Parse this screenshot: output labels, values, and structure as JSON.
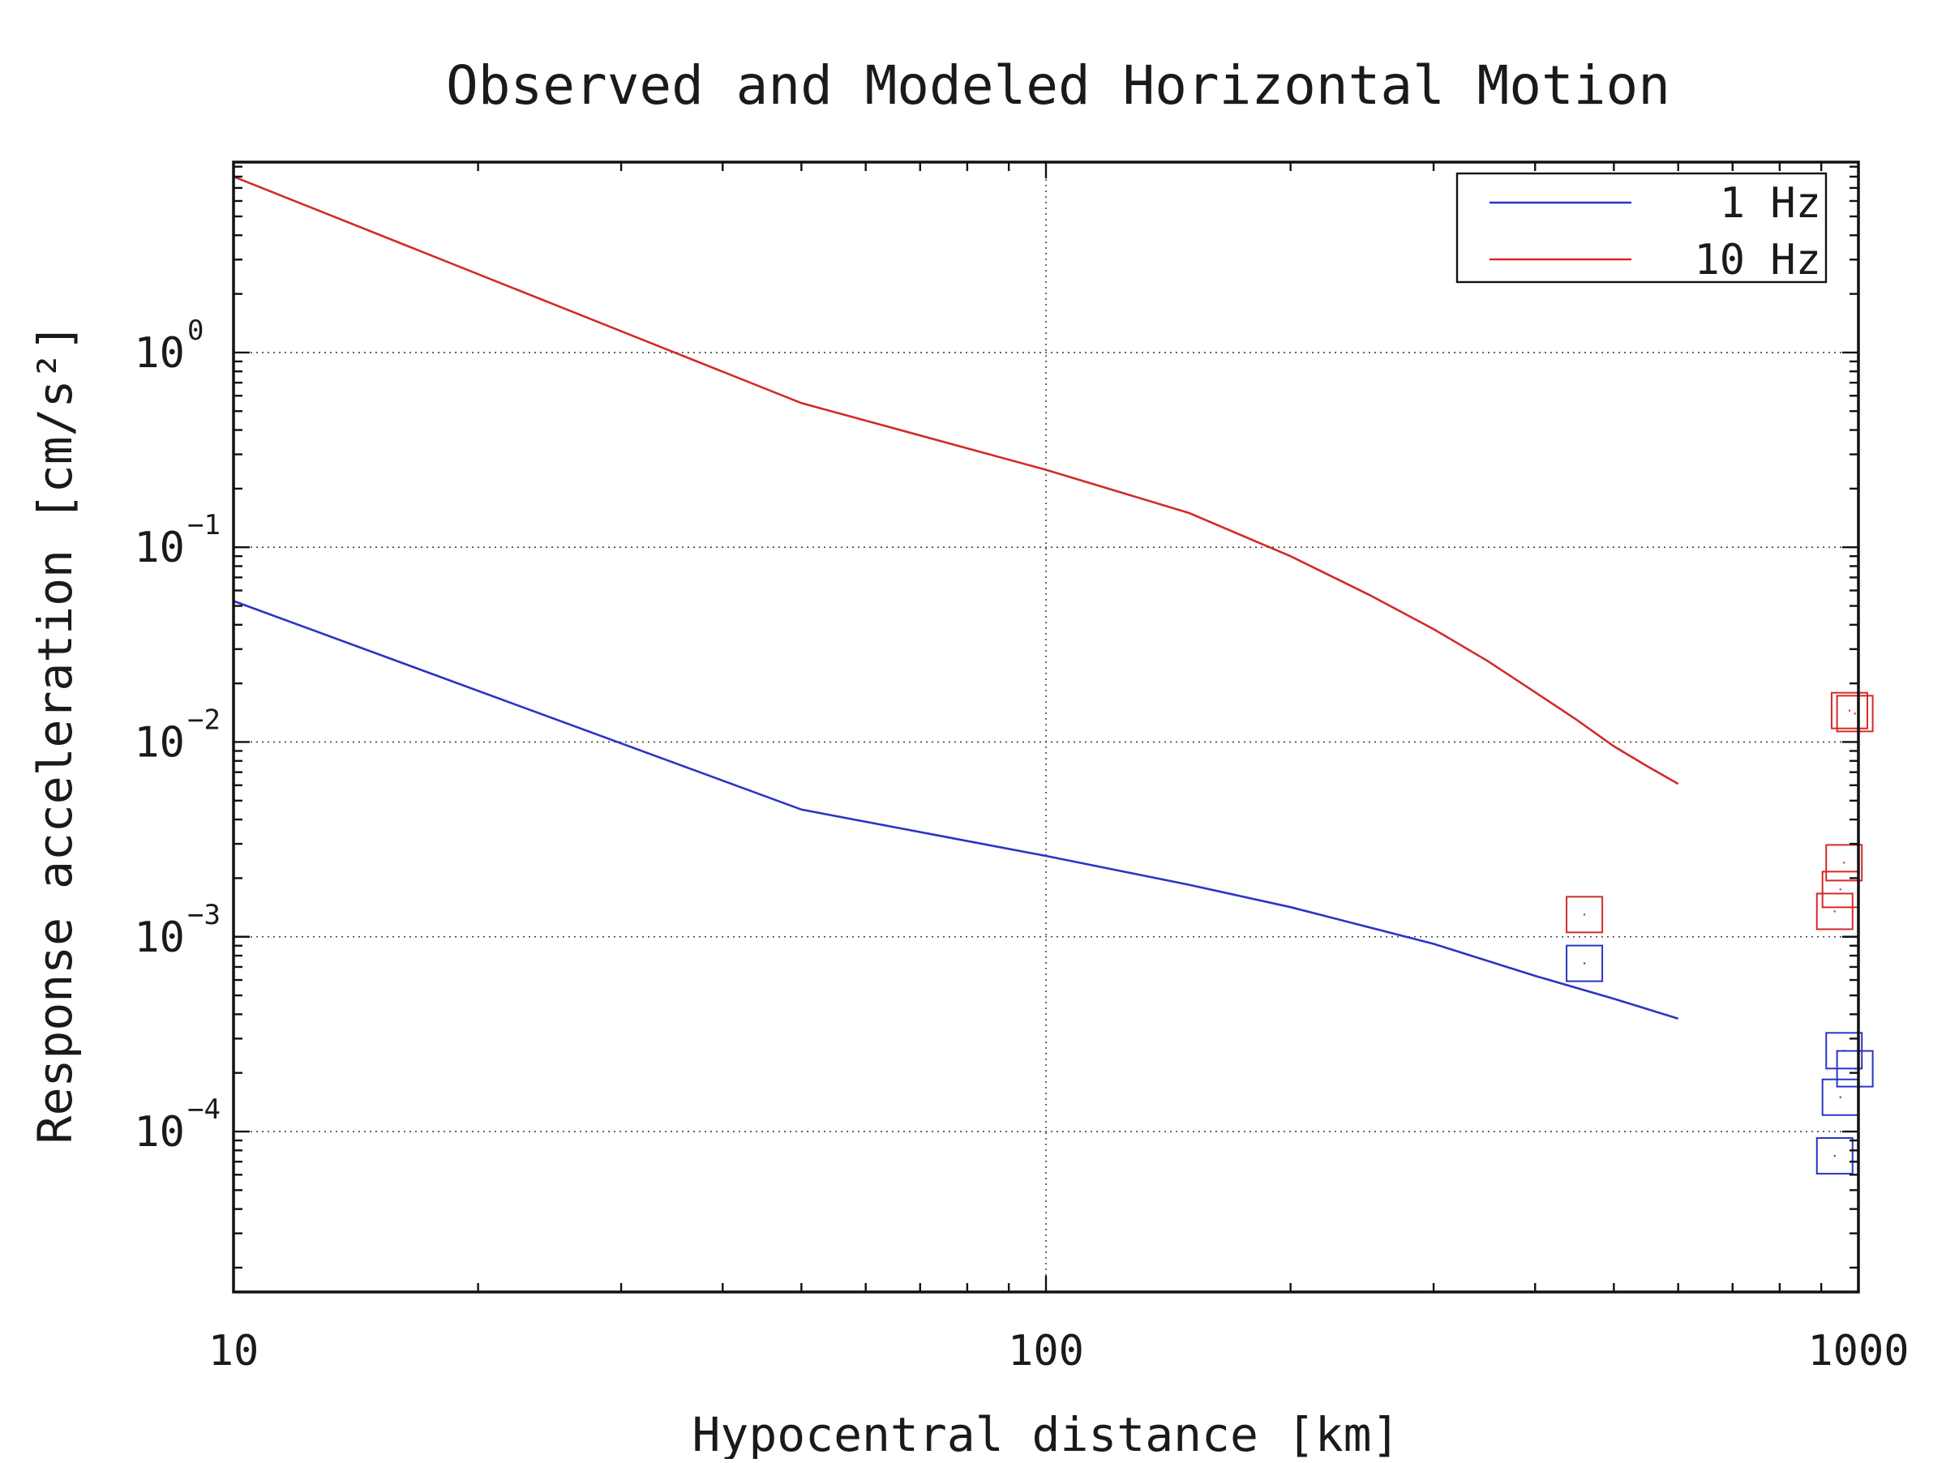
{
  "chart_data": {
    "type": "line",
    "title": "Observed and Modeled Horizontal Motion",
    "xlabel": "Hypocentral distance [km]",
    "ylabel": "Response acceleration [cm/s²]",
    "xscale": "log",
    "yscale": "log",
    "xlim": [
      10,
      1000
    ],
    "ylim": [
      1.5e-05,
      9.5
    ],
    "x_ticks": [
      10,
      100,
      1000
    ],
    "x_tick_labels": [
      "10",
      "100",
      "1000"
    ],
    "y_ticks": [
      1,
      0.1,
      0.01,
      0.001,
      0.0001
    ],
    "y_tick_labels": [
      {
        "base": "10",
        "exp": "0"
      },
      {
        "base": "10",
        "exp": "−1"
      },
      {
        "base": "10",
        "exp": "−2"
      },
      {
        "base": "10",
        "exp": "−3"
      },
      {
        "base": "10",
        "exp": "−4"
      }
    ],
    "grid": true,
    "legend_position": "top-right",
    "series": [
      {
        "name": "1 Hz",
        "color": "#2a35c4",
        "x": [
          10,
          50,
          100,
          150,
          200,
          300,
          400,
          500,
          600
        ],
        "y": [
          0.053,
          0.0045,
          0.0026,
          0.00185,
          0.00142,
          0.00092,
          0.00063,
          0.00048,
          0.00038
        ]
      },
      {
        "name": "10 Hz",
        "color": "#d42a2a",
        "x": [
          10,
          50,
          100,
          150,
          200,
          250,
          300,
          350,
          400,
          450,
          500,
          550,
          600
        ],
        "y": [
          8.0,
          0.55,
          0.25,
          0.15,
          0.09,
          0.057,
          0.038,
          0.026,
          0.018,
          0.013,
          0.0095,
          0.0075,
          0.0061
        ]
      }
    ],
    "observations": [
      {
        "series": "10 Hz",
        "color": "#d42a2a",
        "points": [
          {
            "x": 460,
            "y": 0.0013
          },
          {
            "x": 975,
            "y": 0.0145
          },
          {
            "x": 990,
            "y": 0.014
          },
          {
            "x": 960,
            "y": 0.0024
          },
          {
            "x": 950,
            "y": 0.00175
          },
          {
            "x": 935,
            "y": 0.00135
          }
        ]
      },
      {
        "series": "1 Hz",
        "color": "#2a35c4",
        "points": [
          {
            "x": 460,
            "y": 0.00073
          },
          {
            "x": 960,
            "y": 0.00026
          },
          {
            "x": 990,
            "y": 0.00021
          },
          {
            "x": 950,
            "y": 0.00015
          },
          {
            "x": 935,
            "y": 7.5e-05
          }
        ]
      }
    ]
  }
}
